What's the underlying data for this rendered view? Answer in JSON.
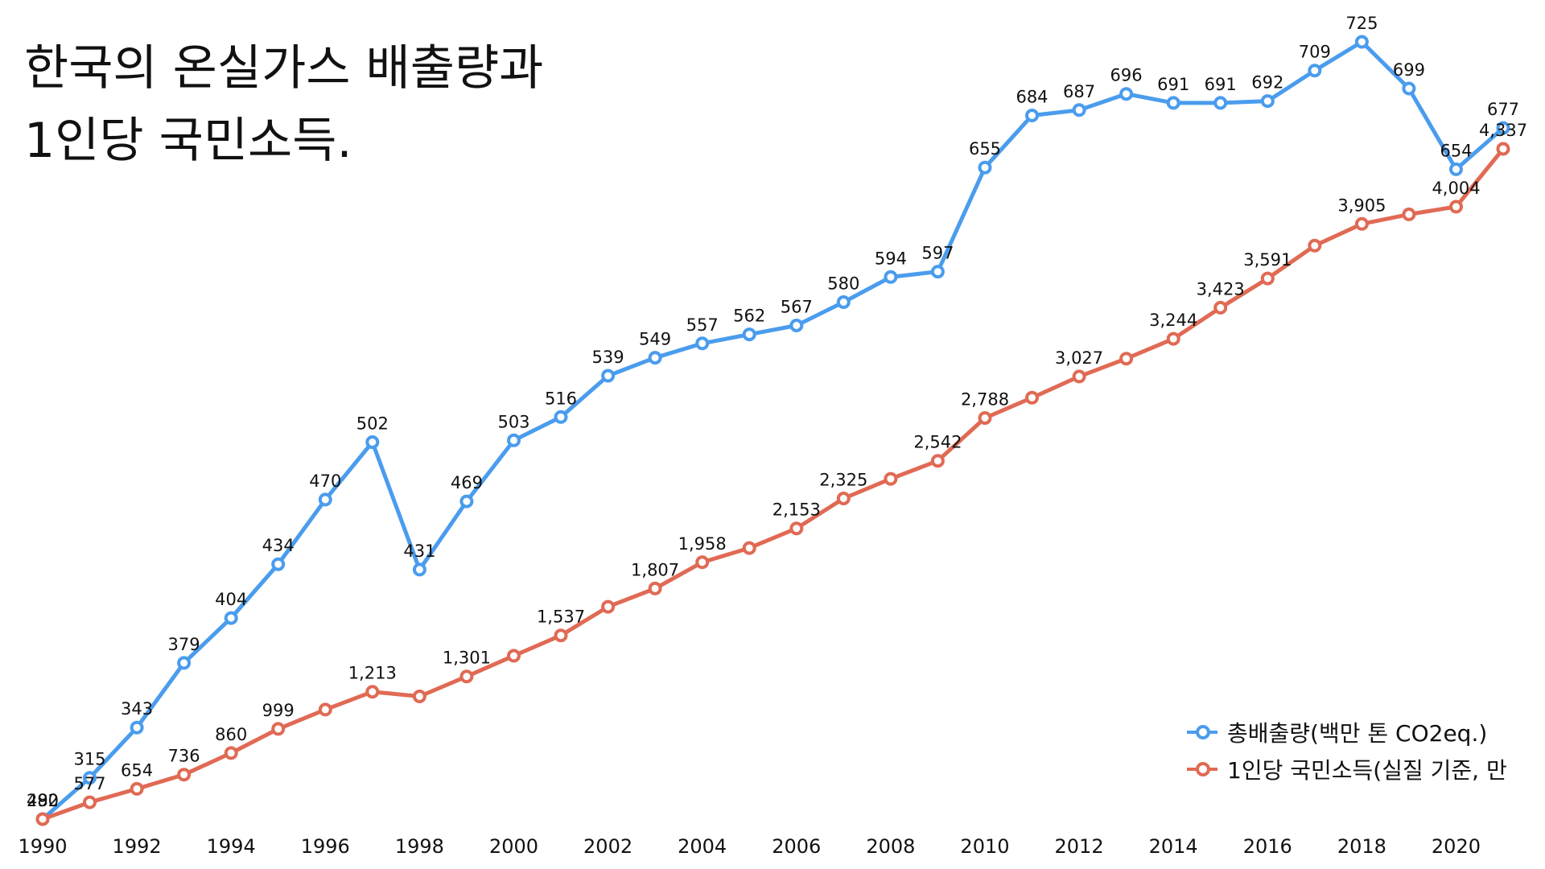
{
  "title": {
    "line1": "한국의 온실가스 배출량과",
    "line2": "1인당 국민소득."
  },
  "colors": {
    "emissions": "#4a9ced",
    "income": "#e06a54"
  },
  "legend": {
    "emissions": "총배출량(백만 톤 CO2eq.)",
    "income": "1인당 국민소득(실질 기준, 만"
  },
  "chart_data": {
    "type": "line",
    "title": "한국의 온실가스 배출량과 1인당 국민소득.",
    "xlabel": "",
    "ylabel": "",
    "grid": false,
    "legend_position": "bottom-right",
    "x": [
      1990,
      1991,
      1992,
      1993,
      1994,
      1995,
      1996,
      1997,
      1998,
      1999,
      2000,
      2001,
      2002,
      2003,
      2004,
      2005,
      2006,
      2007,
      2008,
      2009,
      2010,
      2011,
      2012,
      2013,
      2014,
      2015,
      2016,
      2017,
      2018,
      2019,
      2020,
      2021
    ],
    "x_ticks": [
      "1990",
      "1992",
      "1994",
      "1996",
      "1998",
      "2000",
      "2002",
      "2004",
      "2006",
      "2008",
      "2010",
      "2012",
      "2014",
      "2016",
      "2018",
      "2020"
    ],
    "series": [
      {
        "name": "총배출량(백만 톤 CO2eq.)",
        "color": "#4a9ced",
        "ylim": [
          292,
          725
        ],
        "values": [
          292,
          315,
          343,
          379,
          404,
          434,
          470,
          502,
          431,
          469,
          503,
          516,
          539,
          549,
          557,
          562,
          567,
          580,
          594,
          597,
          655,
          684,
          687,
          696,
          691,
          691,
          692,
          709,
          725,
          699,
          654,
          677
        ],
        "labels": [
          "292",
          "315",
          "343",
          "379",
          "404",
          "434",
          "470",
          "502",
          "431",
          "469",
          "503",
          "516",
          "539",
          "549",
          "557",
          "562",
          "567",
          "580",
          "594",
          "597",
          "655",
          "684",
          "687",
          "696",
          "691",
          "691",
          "692",
          "709",
          "725",
          "699",
          "654",
          "677"
        ]
      },
      {
        "name": "1인당 국민소득(실질 기준, 만",
        "color": "#e06a54",
        "ylim": [
          480,
          4337
        ],
        "values": [
          480,
          577,
          654,
          736,
          860,
          999,
          1110,
          1213,
          1186,
          1301,
          1420,
          1537,
          1702,
          1807,
          1958,
          2040,
          2153,
          2325,
          2438,
          2542,
          2788,
          2905,
          3027,
          3130,
          3244,
          3423,
          3591,
          3780,
          3905,
          3960,
          4004,
          4337
        ],
        "labels": [
          "480",
          "577",
          "654",
          "736",
          "860",
          "999",
          "",
          "1,213",
          "",
          "1,301",
          "",
          "1,537",
          "",
          "1,807",
          "1,958",
          "",
          "2,153",
          "2,325",
          "",
          "2,542",
          "2,788",
          "",
          "3,027",
          "",
          "3,244",
          "3,423",
          "3,591",
          "",
          "3,905",
          "",
          "4,004",
          "4,337"
        ]
      }
    ]
  }
}
